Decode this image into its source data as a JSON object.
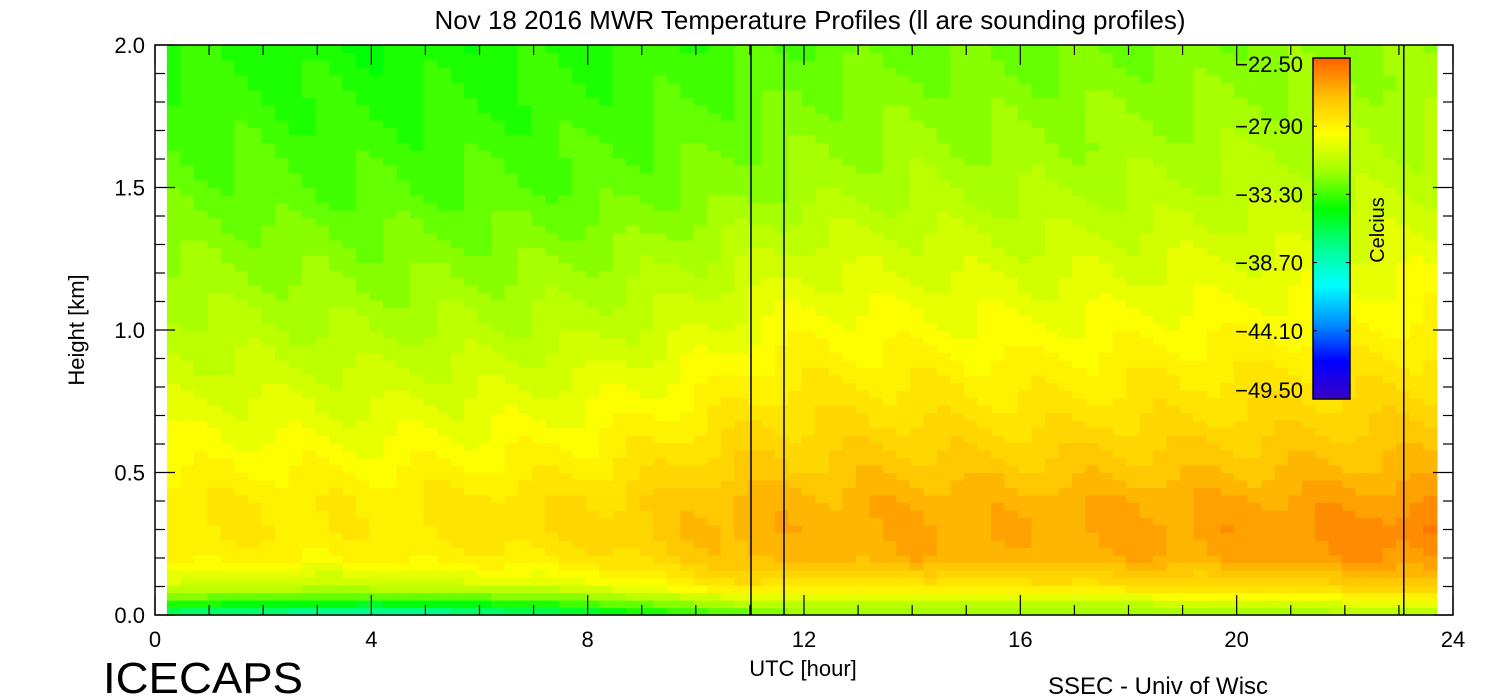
{
  "chart_data": {
    "type": "heatmap",
    "title": "Nov 18 2016 MWR Temperature Profiles (ll are sounding profiles)",
    "xlabel": "UTC [hour]",
    "ylabel": "Height [km]",
    "xlim": [
      0,
      24
    ],
    "ylim": [
      0,
      2.0
    ],
    "x_ticks": [
      "0",
      "4",
      "8",
      "12",
      "16",
      "20",
      "24"
    ],
    "y_ticks": [
      "0.0",
      "0.5",
      "1.0",
      "1.5",
      "2.0"
    ],
    "data_time_range": [
      0.22,
      23.7
    ],
    "sounding_times": [
      11.02,
      11.63,
      23.09
    ],
    "colorbar": {
      "label": "Celcius",
      "range": [
        -49.5,
        -22.5
      ],
      "tick_labels": [
        "-22.50",
        "-27.90",
        "-33.30",
        "-38.70",
        "-44.10",
        "-49.50"
      ]
    },
    "times": [
      0.22,
      2,
      4,
      6,
      8,
      10,
      11,
      12,
      14,
      16,
      18,
      20,
      22,
      23.7
    ],
    "heights": [
      0,
      0.05,
      0.1,
      0.2,
      0.3,
      0.4,
      0.5,
      0.7,
      1.0,
      1.5,
      2.0
    ],
    "values": [
      [
        -37.5,
        -38,
        -39,
        -38,
        -36,
        -34,
        -33,
        -32,
        -32,
        -32,
        -32,
        -32,
        -31.5,
        -31
      ],
      [
        -33,
        -33.5,
        -34,
        -33.5,
        -32.5,
        -31,
        -30,
        -30,
        -30,
        -30,
        -30,
        -29.5,
        -29,
        -28.5
      ],
      [
        -30,
        -30.5,
        -30.5,
        -30,
        -29.5,
        -28,
        -27,
        -27.5,
        -27.5,
        -27.5,
        -27,
        -27,
        -26.5,
        -26
      ],
      [
        -28,
        -28,
        -28.2,
        -27.8,
        -27.3,
        -26,
        -25.2,
        -25.5,
        -25,
        -25.3,
        -25,
        -24.8,
        -24.3,
        -24
      ],
      [
        -27.5,
        -27.6,
        -27.8,
        -27.2,
        -26.8,
        -25.6,
        -25,
        -25.2,
        -24.8,
        -25,
        -24.7,
        -24.5,
        -23.9,
        -23.5
      ],
      [
        -27.7,
        -27.6,
        -27.8,
        -27.3,
        -26.9,
        -25.8,
        -25.2,
        -25.3,
        -25,
        -25.2,
        -24.9,
        -24.8,
        -24.5,
        -24.3
      ],
      [
        -28.2,
        -28.1,
        -28.2,
        -28,
        -27.6,
        -26.5,
        -26,
        -26,
        -25.6,
        -25.9,
        -25.7,
        -25.6,
        -25.3,
        -25.2
      ],
      [
        -29.3,
        -29.3,
        -29.5,
        -29.2,
        -28.8,
        -27.8,
        -27.2,
        -27,
        -27,
        -27.2,
        -27,
        -26.8,
        -26.5,
        -26.3
      ],
      [
        -30.6,
        -30.8,
        -31,
        -30.8,
        -30.5,
        -29.7,
        -29,
        -28.5,
        -28.6,
        -28.8,
        -28.6,
        -28.4,
        -28.2,
        -28
      ],
      [
        -32.6,
        -32.8,
        -33,
        -33,
        -32.8,
        -32.2,
        -31.8,
        -31.3,
        -31,
        -31.1,
        -31,
        -30.7,
        -30.5,
        -30.4
      ],
      [
        -33.8,
        -34,
        -34.2,
        -34,
        -33.8,
        -33.4,
        -33.2,
        -32.8,
        -32.5,
        -32.5,
        -32.3,
        -32.1,
        -31.9,
        -31.8
      ]
    ]
  },
  "footer": {
    "project": "ICECAPS",
    "credit": "SSEC - Univ of Wisc"
  },
  "colors": {
    "stops": [
      "#3a00c8",
      "#0000ff",
      "#0090ff",
      "#00ffff",
      "#00ff90",
      "#00ff00",
      "#a0ff00",
      "#ffff00",
      "#ffc000",
      "#ff6000"
    ]
  }
}
